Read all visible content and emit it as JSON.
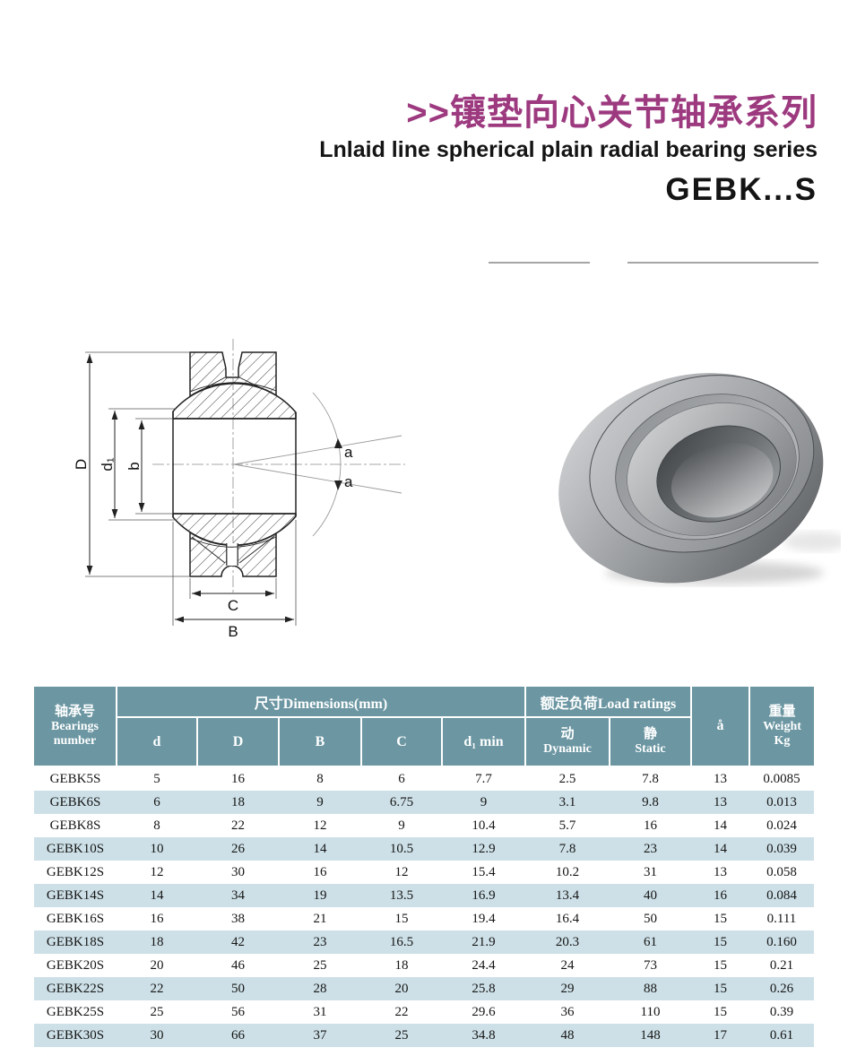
{
  "header": {
    "title_zh": ">>镶垫向心关节轴承系列",
    "title_en": "Lnlaid line spherical plain radial bearing series",
    "model": "GEBK...S"
  },
  "colors": {
    "accent_title": "#9d3a7f",
    "table_header_bg": "#6b96a2",
    "table_row_alt_bg": "#cde0e7"
  },
  "diagram": {
    "label_D": "D",
    "label_d1": "d₁",
    "label_b": "b",
    "label_a_upper": "a",
    "label_a_lower": "a",
    "label_C": "C",
    "label_B": "B"
  },
  "table": {
    "header": {
      "bearings_zh": "轴承号",
      "bearings_en_1": "Bearings",
      "bearings_en_2": "number",
      "dimensions_group": "尺寸Dimensions(mm)",
      "load_group": "额定负荷Load ratings",
      "d": "d",
      "D": "D",
      "B": "B",
      "C": "C",
      "d1min": "d₁ min",
      "dynamic_zh": "动",
      "dynamic_en": "Dynamic",
      "static_zh": "静",
      "static_en": "Static",
      "angle": "å",
      "weight_zh": "重量",
      "weight_en": "Weight",
      "weight_unit": "Kg"
    },
    "rows": [
      [
        "GEBK5S",
        "5",
        "16",
        "8",
        "6",
        "7.7",
        "2.5",
        "7.8",
        "13",
        "0.0085"
      ],
      [
        "GEBK6S",
        "6",
        "18",
        "9",
        "6.75",
        "9",
        "3.1",
        "9.8",
        "13",
        "0.013"
      ],
      [
        "GEBK8S",
        "8",
        "22",
        "12",
        "9",
        "10.4",
        "5.7",
        "16",
        "14",
        "0.024"
      ],
      [
        "GEBK10S",
        "10",
        "26",
        "14",
        "10.5",
        "12.9",
        "7.8",
        "23",
        "14",
        "0.039"
      ],
      [
        "GEBK12S",
        "12",
        "30",
        "16",
        "12",
        "15.4",
        "10.2",
        "31",
        "13",
        "0.058"
      ],
      [
        "GEBK14S",
        "14",
        "34",
        "19",
        "13.5",
        "16.9",
        "13.4",
        "40",
        "16",
        "0.084"
      ],
      [
        "GEBK16S",
        "16",
        "38",
        "21",
        "15",
        "19.4",
        "16.4",
        "50",
        "15",
        "0.111"
      ],
      [
        "GEBK18S",
        "18",
        "42",
        "23",
        "16.5",
        "21.9",
        "20.3",
        "61",
        "15",
        "0.160"
      ],
      [
        "GEBK20S",
        "20",
        "46",
        "25",
        "18",
        "24.4",
        "24",
        "73",
        "15",
        "0.21"
      ],
      [
        "GEBK22S",
        "22",
        "50",
        "28",
        "20",
        "25.8",
        "29",
        "88",
        "15",
        "0.26"
      ],
      [
        "GEBK25S",
        "25",
        "56",
        "31",
        "22",
        "29.6",
        "36",
        "110",
        "15",
        "0.39"
      ],
      [
        "GEBK30S",
        "30",
        "66",
        "37",
        "25",
        "34.8",
        "48",
        "148",
        "17",
        "0.61"
      ]
    ]
  }
}
